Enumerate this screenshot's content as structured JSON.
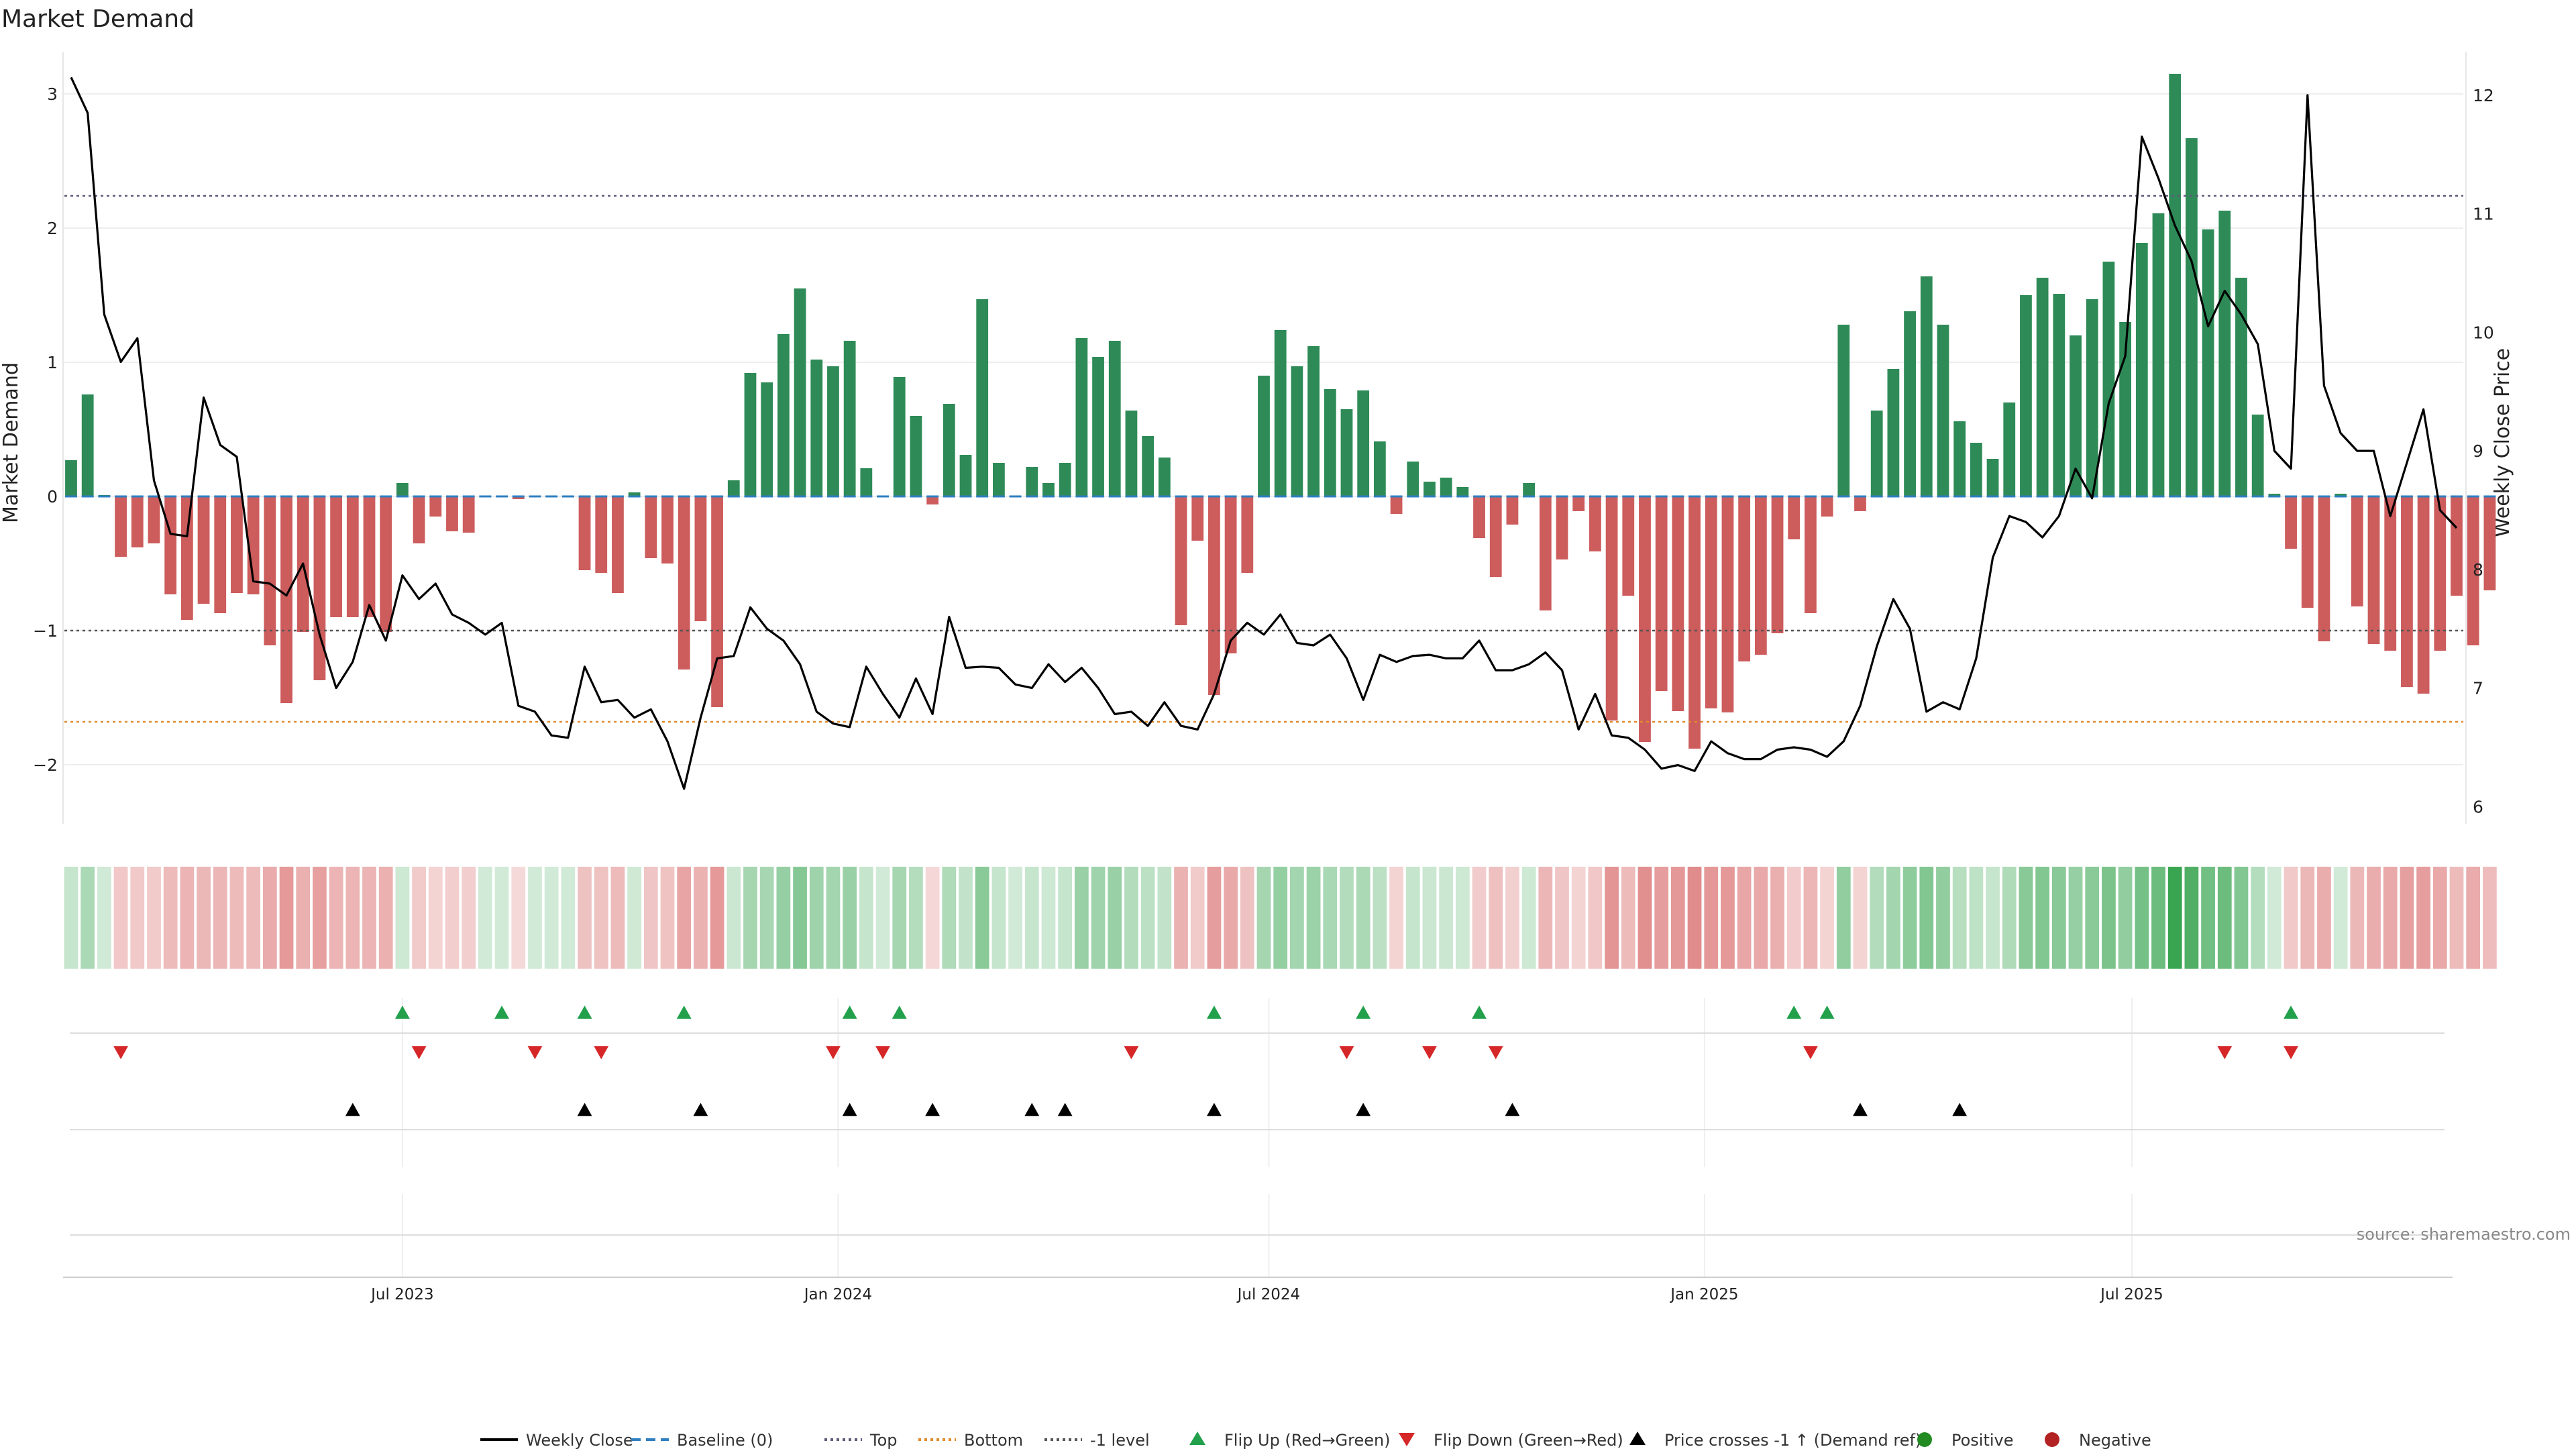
{
  "chart_data": {
    "type": "bar",
    "title": "Market Demand",
    "ylabel": "Market Demand",
    "y2label": "Weekly Close Price",
    "ylim": [
      -2.4,
      3.3
    ],
    "y2lim": [
      5.9,
      12.35
    ],
    "yticks": [
      -2,
      -1,
      0,
      1,
      2,
      3
    ],
    "yticks_labels": [
      "−2",
      "−1",
      "0",
      "1",
      "2",
      "3"
    ],
    "y2ticks": [
      6,
      7,
      8,
      9,
      10,
      11,
      12
    ],
    "y2ticks_labels": [
      "6",
      "7",
      "8",
      "9",
      "10",
      "11",
      "12"
    ],
    "x_start": 0,
    "x_end": 144,
    "xticks": [
      20,
      46.3,
      72.3,
      98.6,
      124.4
    ],
    "xtick_labels": [
      "Jul 2023",
      "Jan 2024",
      "Jul 2024",
      "Jan 2025",
      "Jul 2025"
    ],
    "reference_lines": {
      "top": 2.24,
      "bottom": -1.68,
      "minus_one": -1,
      "baseline": 0
    },
    "series": [
      {
        "name": "Market Demand",
        "values": [
          0.27,
          0.76,
          0.01,
          -0.45,
          -0.38,
          -0.35,
          -0.73,
          -0.92,
          -0.8,
          -0.87,
          -0.72,
          -0.73,
          -1.11,
          -1.54,
          -1.01,
          -1.37,
          -0.9,
          -0.9,
          -0.9,
          -1.01,
          0.1,
          -0.35,
          -0.15,
          -0.26,
          -0.27,
          0,
          0,
          -0.02,
          0,
          0,
          0,
          -0.55,
          -0.57,
          -0.72,
          0.03,
          -0.46,
          -0.5,
          -1.29,
          -0.93,
          -1.57,
          0.12,
          0.92,
          0.85,
          1.21,
          1.55,
          1.02,
          0.97,
          1.16,
          0.21,
          0.0,
          0.89,
          0.6,
          -0.06,
          0.69,
          0.31,
          1.47,
          0.25,
          0,
          0.22,
          0.1,
          0.25,
          1.18,
          1.04,
          1.16,
          0.64,
          0.45,
          0.29,
          -0.96,
          -0.33,
          -1.48,
          -1.17,
          -0.57,
          0.9,
          1.24,
          0.97,
          1.12,
          0.8,
          0.65,
          0.79,
          0.41,
          -0.13,
          0.26,
          0.11,
          0.14,
          0.07,
          -0.31,
          -0.6,
          -0.21,
          0.1,
          -0.85,
          -0.47,
          -0.11,
          -0.41,
          -1.67,
          -0.74,
          -1.83,
          -1.45,
          -1.6,
          -1.88,
          -1.58,
          -1.61,
          -1.23,
          -1.18,
          -1.02,
          -0.32,
          -0.87,
          -0.15,
          1.28,
          -0.11,
          0.64,
          0.95,
          1.38,
          1.64,
          1.28,
          0.56,
          0.4,
          0.28,
          0.7,
          1.5,
          1.63,
          1.51,
          1.2,
          1.47,
          1.75,
          1.3,
          1.89,
          2.11,
          3.15,
          2.67,
          1.99,
          2.13,
          1.63,
          0.61,
          0.02,
          -0.39,
          -0.83,
          -1.08,
          0.02,
          -0.82,
          -1.1,
          -1.15,
          -1.42,
          -1.47,
          -1.15,
          -0.74,
          -1.11,
          -0.7
        ]
      },
      {
        "name": "Weekly Close",
        "points": [
          [
            0,
            12.15
          ],
          [
            1,
            11.85
          ],
          [
            2,
            10.15
          ],
          [
            3,
            9.75
          ],
          [
            4,
            9.95
          ],
          [
            5,
            8.75
          ],
          [
            6,
            8.3
          ],
          [
            7,
            8.28
          ],
          [
            8,
            9.45
          ],
          [
            9,
            9.05
          ],
          [
            10,
            8.95
          ],
          [
            11,
            7.9
          ],
          [
            12,
            7.88
          ],
          [
            13,
            7.78
          ],
          [
            14,
            8.05
          ],
          [
            15,
            7.45
          ],
          [
            16,
            7.0
          ],
          [
            17,
            7.22
          ],
          [
            18,
            7.7
          ],
          [
            19,
            7.4
          ],
          [
            20,
            7.95
          ],
          [
            21,
            7.75
          ],
          [
            22,
            7.88
          ],
          [
            23,
            7.62
          ],
          [
            24,
            7.55
          ],
          [
            25,
            7.45
          ],
          [
            26,
            7.55
          ],
          [
            27,
            6.85
          ],
          [
            28,
            6.8
          ],
          [
            29,
            6.6
          ],
          [
            30,
            6.58
          ],
          [
            31,
            7.18
          ],
          [
            32,
            6.88
          ],
          [
            33,
            6.9
          ],
          [
            34,
            6.75
          ],
          [
            35,
            6.82
          ],
          [
            36,
            6.55
          ],
          [
            37,
            6.15
          ],
          [
            38,
            6.75
          ],
          [
            39,
            7.25
          ],
          [
            40,
            7.27
          ],
          [
            41,
            7.68
          ],
          [
            42,
            7.5
          ],
          [
            43,
            7.4
          ],
          [
            44,
            7.2
          ],
          [
            45,
            6.8
          ],
          [
            46,
            6.7
          ],
          [
            47,
            6.67
          ],
          [
            48,
            7.18
          ],
          [
            49,
            6.95
          ],
          [
            50,
            6.75
          ],
          [
            51,
            7.08
          ],
          [
            52,
            6.78
          ],
          [
            53,
            7.6
          ],
          [
            54,
            7.17
          ],
          [
            55,
            7.18
          ],
          [
            56,
            7.17
          ],
          [
            57,
            7.03
          ],
          [
            58,
            7.0
          ],
          [
            59,
            7.2
          ],
          [
            60,
            7.05
          ],
          [
            61,
            7.17
          ],
          [
            62,
            7.0
          ],
          [
            63,
            6.78
          ],
          [
            64,
            6.8
          ],
          [
            65,
            6.68
          ],
          [
            66,
            6.88
          ],
          [
            67,
            6.68
          ],
          [
            68,
            6.65
          ],
          [
            69,
            6.95
          ],
          [
            70,
            7.4
          ],
          [
            71,
            7.55
          ],
          [
            72,
            7.45
          ],
          [
            73,
            7.62
          ],
          [
            74,
            7.38
          ],
          [
            75,
            7.36
          ],
          [
            76,
            7.45
          ],
          [
            77,
            7.25
          ],
          [
            78,
            6.9
          ],
          [
            79,
            7.28
          ],
          [
            80,
            7.22
          ],
          [
            81,
            7.27
          ],
          [
            82,
            7.28
          ],
          [
            83,
            7.25
          ],
          [
            84,
            7.25
          ],
          [
            85,
            7.4
          ],
          [
            86,
            7.15
          ],
          [
            87,
            7.15
          ],
          [
            88,
            7.2
          ],
          [
            89,
            7.3
          ],
          [
            90,
            7.15
          ],
          [
            91,
            6.65
          ],
          [
            92,
            6.95
          ],
          [
            93,
            6.6
          ],
          [
            94,
            6.58
          ],
          [
            95,
            6.48
          ],
          [
            96,
            6.32
          ],
          [
            97,
            6.35
          ],
          [
            98,
            6.3
          ],
          [
            99,
            6.55
          ],
          [
            100,
            6.45
          ],
          [
            101,
            6.4
          ],
          [
            102,
            6.4
          ],
          [
            103,
            6.48
          ],
          [
            104,
            6.5
          ],
          [
            105,
            6.48
          ],
          [
            106,
            6.42
          ],
          [
            107,
            6.55
          ],
          [
            108,
            6.85
          ],
          [
            109,
            7.35
          ],
          [
            110,
            7.75
          ],
          [
            111,
            7.5
          ],
          [
            112,
            6.8
          ],
          [
            113,
            6.88
          ],
          [
            114,
            6.82
          ],
          [
            115,
            7.25
          ],
          [
            116,
            8.1
          ],
          [
            117,
            8.45
          ],
          [
            118,
            8.4
          ],
          [
            119,
            8.27
          ],
          [
            120,
            8.45
          ],
          [
            121,
            8.85
          ],
          [
            122,
            8.6
          ],
          [
            123,
            9.4
          ],
          [
            124,
            9.8
          ],
          [
            125,
            11.65
          ],
          [
            126,
            11.3
          ],
          [
            127,
            10.9
          ],
          [
            128,
            10.6
          ],
          [
            129,
            10.05
          ],
          [
            130,
            10.35
          ],
          [
            131,
            10.15
          ],
          [
            132,
            9.9
          ],
          [
            133,
            9.0
          ],
          [
            134,
            8.85
          ],
          [
            135,
            12.0
          ],
          [
            136,
            9.55
          ],
          [
            137,
            9.15
          ],
          [
            138,
            9.0
          ],
          [
            139,
            9.0
          ],
          [
            140,
            8.45
          ],
          [
            141,
            8.9
          ],
          [
            142,
            9.35
          ],
          [
            143,
            8.5
          ],
          [
            144,
            8.35
          ]
        ]
      }
    ],
    "markers": {
      "flip_up": [
        20,
        26,
        31,
        37,
        47,
        50,
        69,
        78,
        85,
        104,
        106,
        134
      ],
      "flip_down": [
        3,
        21,
        28,
        32,
        46,
        49,
        64,
        77,
        82,
        86,
        105,
        130,
        134
      ],
      "price_crosses": [
        17,
        31,
        38,
        47,
        52,
        58,
        60,
        69,
        78,
        87,
        108,
        114
      ]
    },
    "legend": [
      {
        "label": "Weekly Close",
        "style": "line-solid",
        "color": "#000000"
      },
      {
        "label": "Baseline (0)",
        "style": "line-dashed",
        "color": "#2f7fc1"
      },
      {
        "label": "Top",
        "style": "line-dotted",
        "color": "#5e5a7a"
      },
      {
        "label": "Bottom",
        "style": "line-dotted",
        "color": "#e08a2a"
      },
      {
        "label": "-1 level",
        "style": "line-dotted",
        "color": "#555555"
      },
      {
        "label": "Flip Up (Red→Green)",
        "style": "triangle-up",
        "color": "#22a04c"
      },
      {
        "label": "Flip Down (Green→Red)",
        "style": "triangle-down",
        "color": "#d62728"
      },
      {
        "label": "Price crosses -1 ↑ (Demand ref)",
        "style": "triangle-up",
        "color": "#000000"
      },
      {
        "label": "Positive",
        "style": "dot",
        "color": "#228b22"
      },
      {
        "label": "Negative",
        "style": "dot",
        "color": "#b22222"
      }
    ],
    "source": "source: sharemaestro.com"
  },
  "colors": {
    "positive_bar": "#2e8b57",
    "negative_bar": "#cd5c5c",
    "price_line": "#000000",
    "top_line": "#5e5a7a",
    "bottom_line": "#e08a2a",
    "minus_one_line": "#555555",
    "baseline": "#2f7fc1",
    "flip_up": "#22a04c",
    "flip_down": "#d62728",
    "cross": "#000000"
  }
}
